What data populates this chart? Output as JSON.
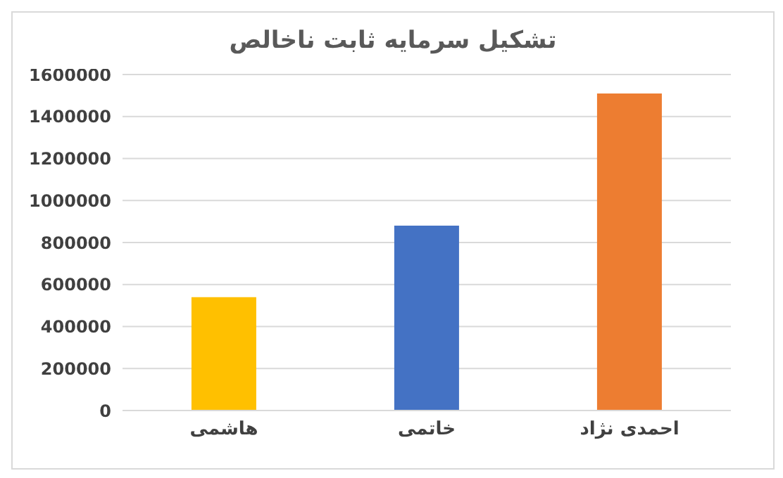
{
  "chart_data": {
    "type": "bar",
    "title": "تشکیل سرمایه ثابت ناخالص",
    "categories": [
      "هاشمی",
      "خاتمی",
      "احمدی نژاد"
    ],
    "values": [
      540000,
      880000,
      1510000
    ],
    "colors": [
      "#ffc000",
      "#4472c4",
      "#ed7d31"
    ],
    "ylim": [
      0,
      1600000
    ],
    "yticks": [
      0,
      200000,
      400000,
      600000,
      800000,
      1000000,
      1200000,
      1400000,
      1600000
    ],
    "grid": "y"
  }
}
